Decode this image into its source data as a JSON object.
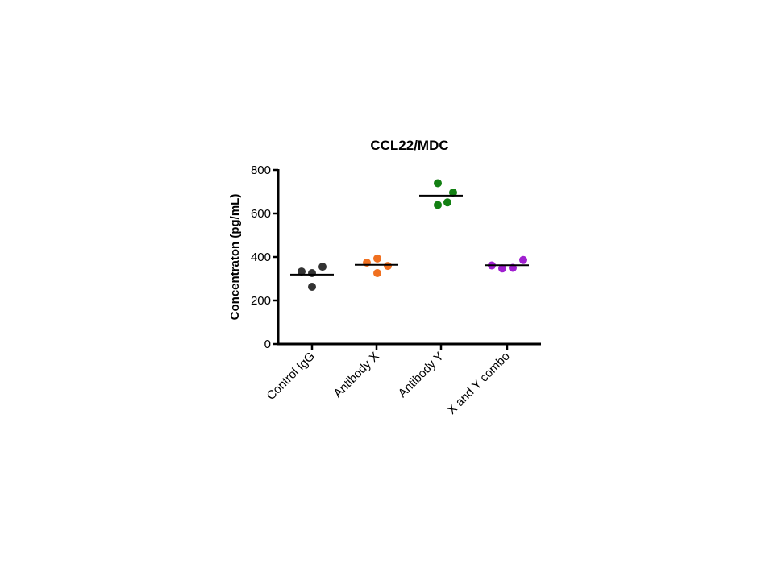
{
  "chart_data": {
    "type": "scatter",
    "title": "CCL22/MDC",
    "xlabel": "",
    "ylabel": "Concentraton (pg/mL)",
    "ylim": [
      0,
      800
    ],
    "yticks": [
      "0",
      "200",
      "400",
      "600",
      "800"
    ],
    "grid": false,
    "legend": "none",
    "categories": [
      "Control IgG",
      "Antibody X",
      "Antibody Y",
      "X and Y combo"
    ],
    "series": [
      {
        "name": "Control IgG",
        "color": "#333333",
        "values": [
          333,
          326,
          355,
          263
        ],
        "mean": 319
      },
      {
        "name": "Antibody X",
        "color": "#f07020",
        "values": [
          374,
          393,
          326,
          359
        ],
        "mean": 364
      },
      {
        "name": "Antibody Y",
        "color": "#138013",
        "values": [
          739,
          639,
          651,
          696
        ],
        "mean": 682
      },
      {
        "name": "X and Y combo",
        "color": "#a020d0",
        "values": [
          361,
          347,
          350,
          386
        ],
        "mean": 362
      }
    ]
  }
}
